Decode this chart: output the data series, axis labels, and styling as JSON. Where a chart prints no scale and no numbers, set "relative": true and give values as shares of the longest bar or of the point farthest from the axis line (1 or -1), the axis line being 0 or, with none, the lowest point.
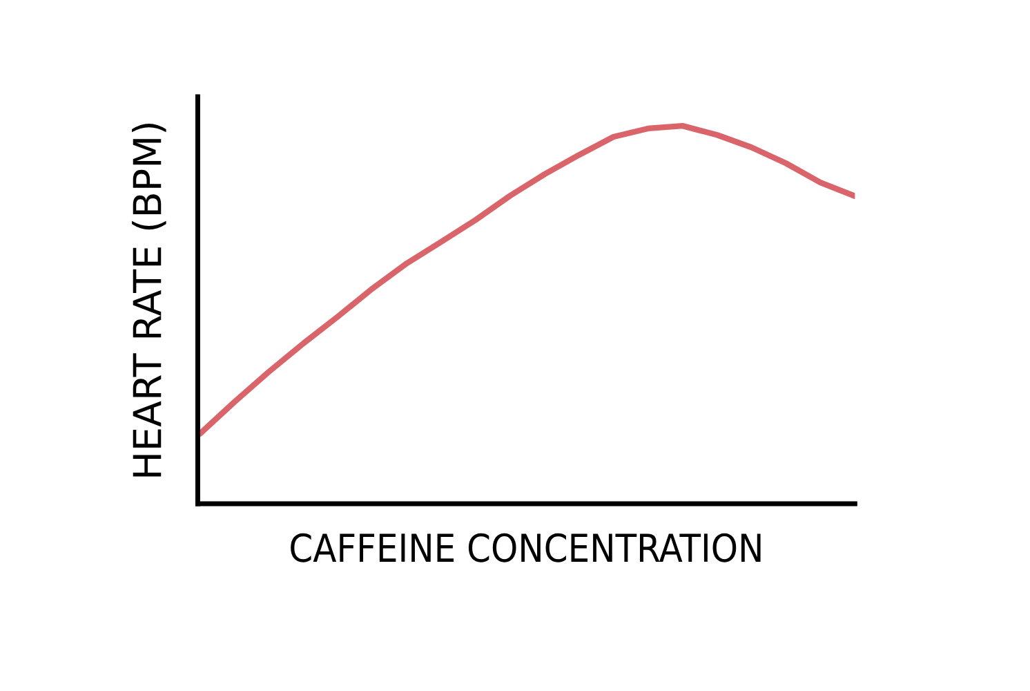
{
  "chart_data": {
    "type": "line",
    "relative": true,
    "xlabel": "CAFFEINE CONCENTRATION",
    "ylabel": "HEART RATE (BPM)",
    "categories": [
      null,
      null,
      null,
      null,
      null,
      null,
      null,
      null,
      null,
      null,
      null,
      null,
      null,
      null,
      null,
      null,
      null,
      null,
      null,
      null
    ],
    "series": [
      {
        "color": "#d9646a",
        "values": [
          0.185,
          0.269,
          0.349,
          0.424,
          0.495,
          0.569,
          0.636,
          0.693,
          0.751,
          0.815,
          0.872,
          0.923,
          0.971,
          0.993,
          1.0,
          0.976,
          0.943,
          0.901,
          0.85,
          0.814
        ]
      }
    ],
    "legend": false,
    "marker": "none",
    "line_style": "solid"
  }
}
